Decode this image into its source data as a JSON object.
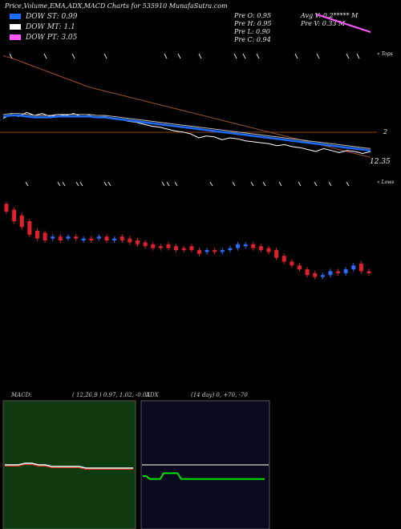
{
  "header": {
    "title": "Price,Volume,EMA,ADX,MACD Charts for 535910 MunafaSutra.com"
  },
  "legend": [
    {
      "label": "DOW ST: 0.99",
      "color": "#1e6cff"
    },
    {
      "label": "DOW MT: 1.1",
      "color": "#ffffff"
    },
    {
      "label": "DOW PT: 3.05",
      "color": "#ff55ff"
    }
  ],
  "stats": {
    "col1": [
      "Pre  O: 0.95",
      "Pre  H: 0.95",
      "Pre  L: 0.90",
      "Pre  C: 0.94"
    ],
    "col2": [
      "Avg V: 0.2***** M",
      "Pre   V: 0.33 M"
    ]
  },
  "price_panel": {
    "right_top": "« Tops",
    "right_low": "« Lows",
    "level_label": "2",
    "price_label": "12.35"
  },
  "macd_panel": {
    "title": "MACD:",
    "params": "( 12,26,9 ) 0.97,  1.02,  -0.05"
  },
  "adx_panel": {
    "title": "ADX",
    "params": "(14  day) 0,  +70,  -70"
  },
  "colors": {
    "ema_short": "#1e6cff",
    "ema_long": "#a0522d",
    "price_line": "#ffffff",
    "grid_line": "#8b4513",
    "candle_up": "#2a6cff",
    "candle_down": "#e0202c",
    "macd_bg": "#0f3a0f",
    "adx_bg": "#0a0a2a",
    "adx_line": "#00e000"
  },
  "chart_data": {
    "type": "candlestick",
    "candles": [
      {
        "o": 1.34,
        "c": 1.3
      },
      {
        "o": 1.31,
        "c": 1.25
      },
      {
        "o": 1.28,
        "c": 1.22
      },
      {
        "o": 1.25,
        "c": 1.18
      },
      {
        "o": 1.2,
        "c": 1.16
      },
      {
        "o": 1.19,
        "c": 1.15
      },
      {
        "o": 1.16,
        "c": 1.17
      },
      {
        "o": 1.17,
        "c": 1.15
      },
      {
        "o": 1.16,
        "c": 1.17
      },
      {
        "o": 1.17,
        "c": 1.16
      },
      {
        "o": 1.15,
        "c": 1.16
      },
      {
        "o": 1.16,
        "c": 1.15
      },
      {
        "o": 1.16,
        "c": 1.17
      },
      {
        "o": 1.17,
        "c": 1.15
      },
      {
        "o": 1.15,
        "c": 1.16
      },
      {
        "o": 1.17,
        "c": 1.15
      },
      {
        "o": 1.16,
        "c": 1.14
      },
      {
        "o": 1.15,
        "c": 1.13
      },
      {
        "o": 1.14,
        "c": 1.12
      },
      {
        "o": 1.13,
        "c": 1.11
      },
      {
        "o": 1.12,
        "c": 1.11
      },
      {
        "o": 1.13,
        "c": 1.11
      },
      {
        "o": 1.12,
        "c": 1.1
      },
      {
        "o": 1.11,
        "c": 1.1
      },
      {
        "o": 1.12,
        "c": 1.1
      },
      {
        "o": 1.1,
        "c": 1.08
      },
      {
        "o": 1.09,
        "c": 1.1
      },
      {
        "o": 1.1,
        "c": 1.09
      },
      {
        "o": 1.09,
        "c": 1.1
      },
      {
        "o": 1.1,
        "c": 1.11
      },
      {
        "o": 1.11,
        "c": 1.13
      },
      {
        "o": 1.12,
        "c": 1.13
      },
      {
        "o": 1.13,
        "c": 1.11
      },
      {
        "o": 1.12,
        "c": 1.1
      },
      {
        "o": 1.11,
        "c": 1.09
      },
      {
        "o": 1.1,
        "c": 1.06
      },
      {
        "o": 1.07,
        "c": 1.04
      },
      {
        "o": 1.04,
        "c": 1.02
      },
      {
        "o": 1.02,
        "c": 1.0
      },
      {
        "o": 1.0,
        "c": 0.97
      },
      {
        "o": 0.98,
        "c": 0.96
      },
      {
        "o": 0.96,
        "c": 0.97
      },
      {
        "o": 0.97,
        "c": 0.99
      },
      {
        "o": 0.99,
        "c": 0.98
      },
      {
        "o": 0.98,
        "c": 1.0
      },
      {
        "o": 1.0,
        "c": 1.02
      },
      {
        "o": 1.03,
        "c": 0.99
      },
      {
        "o": 0.99,
        "c": 0.98
      }
    ],
    "ema_short": [
      1.3,
      1.31,
      1.31,
      1.3,
      1.29,
      1.29,
      1.29,
      1.3,
      1.3,
      1.3,
      1.3,
      1.3,
      1.29,
      1.29,
      1.28,
      1.27,
      1.26,
      1.25,
      1.24,
      1.23,
      1.22,
      1.21,
      1.2,
      1.19,
      1.18,
      1.17,
      1.16,
      1.15,
      1.14,
      1.13,
      1.12,
      1.11,
      1.1,
      1.09,
      1.08,
      1.07,
      1.06,
      1.05,
      1.04,
      1.03,
      1.02,
      1.01,
      1.0,
      0.99,
      0.98,
      0.97,
      0.96,
      0.95
    ],
    "ema_long": [
      1.92,
      1.9,
      1.87,
      1.84,
      1.81,
      1.78,
      1.75,
      1.72,
      1.69,
      1.66,
      1.63,
      1.6,
      1.58,
      1.56,
      1.54,
      1.52,
      1.5,
      1.48,
      1.46,
      1.44,
      1.42,
      1.4,
      1.38,
      1.36,
      1.34,
      1.32,
      1.3,
      1.28,
      1.26,
      1.24,
      1.22,
      1.2,
      1.18,
      1.16,
      1.14,
      1.12,
      1.1,
      1.08,
      1.06,
      1.04,
      1.02,
      1.0,
      0.98,
      0.96,
      0.94,
      0.92,
      0.9,
      0.88
    ],
    "price_line": [
      1.28,
      1.32,
      1.3,
      1.34,
      1.31,
      1.33,
      1.3,
      1.32,
      1.31,
      1.33,
      1.3,
      1.31,
      1.29,
      1.3,
      1.28,
      1.27,
      1.25,
      1.24,
      1.22,
      1.2,
      1.19,
      1.17,
      1.15,
      1.14,
      1.12,
      1.08,
      1.1,
      1.09,
      1.06,
      1.08,
      1.07,
      1.05,
      1.04,
      1.03,
      1.02,
      1.0,
      1.01,
      0.99,
      0.98,
      0.96,
      0.94,
      0.97,
      0.95,
      0.93,
      0.95,
      0.94,
      0.92,
      0.94
    ],
    "adx_line": [
      55,
      55,
      52,
      52,
      52,
      52,
      58,
      58,
      58,
      58,
      58,
      52,
      52,
      52,
      52,
      52,
      52,
      52,
      52,
      52,
      52,
      52,
      52,
      52,
      52,
      52,
      52,
      52,
      52,
      52,
      52,
      52,
      52,
      52,
      52,
      52
    ],
    "macd": [
      0.0,
      0.0,
      0.0,
      0.01,
      0.01,
      0.0,
      0.0,
      -0.01,
      -0.01,
      -0.01,
      -0.01,
      -0.01,
      -0.02,
      -0.02,
      -0.02,
      -0.02,
      -0.02,
      -0.02,
      -0.02,
      -0.02
    ]
  }
}
